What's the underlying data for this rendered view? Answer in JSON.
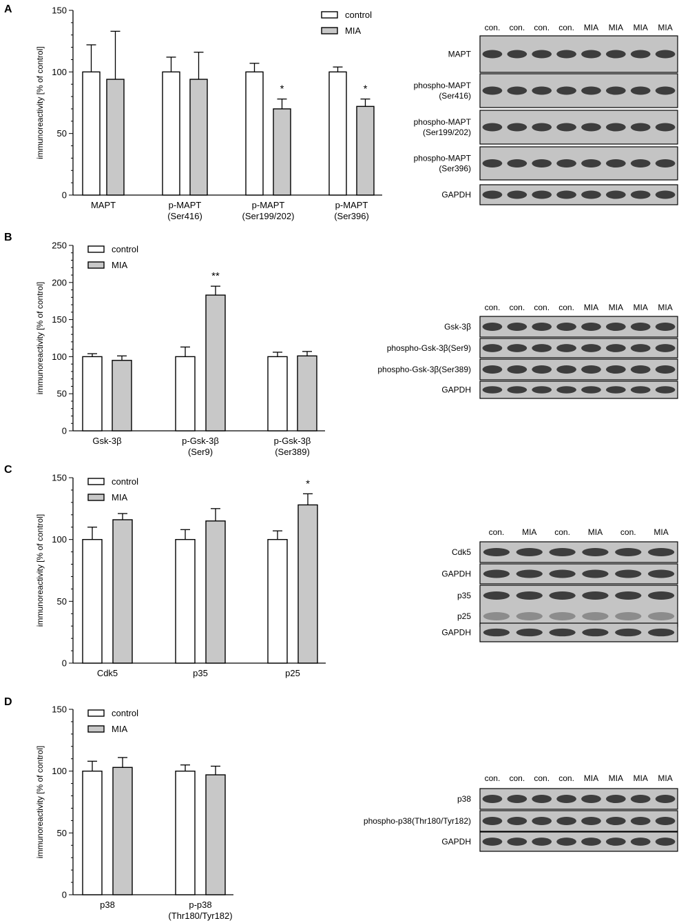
{
  "legend": {
    "control": "control",
    "mia": "MIA"
  },
  "colors": {
    "control": "#ffffff",
    "mia": "#c8c8c8",
    "blot_bg": "#c4c4c4",
    "band": "#262626"
  },
  "panels": [
    {
      "letter": "A",
      "ylabel": "immunoreactivity [% of control]",
      "lane_labels": [
        "con.",
        "con.",
        "con.",
        "con.",
        "MIA",
        "MIA",
        "MIA",
        "MIA"
      ],
      "blots": [
        {
          "label": [
            "MAPT"
          ],
          "rows": 1
        },
        {
          "label": [
            "phospho-MAPT",
            "(Ser416)"
          ],
          "rows": 1
        },
        {
          "label": [
            "phospho-MAPT",
            "(Ser199/202)"
          ],
          "rows": 1
        },
        {
          "label": [
            "phospho-MAPT",
            "(Ser396)"
          ],
          "rows": 1
        },
        {
          "label": [
            "GAPDH"
          ],
          "rows": 1
        }
      ]
    },
    {
      "letter": "B",
      "ylabel": "immunoreactivity [% of control]",
      "lane_labels": [
        "con.",
        "con.",
        "con.",
        "con.",
        "MIA",
        "MIA",
        "MIA",
        "MIA"
      ],
      "blots": [
        {
          "label": [
            "Gsk-3β"
          ],
          "rows": 1
        },
        {
          "label": [
            "phospho-Gsk-3β(Ser9)"
          ],
          "rows": 1
        },
        {
          "label": [
            "phospho-Gsk-3β(Ser389)"
          ],
          "rows": 1
        },
        {
          "label": [
            "GAPDH"
          ],
          "rows": 1
        }
      ]
    },
    {
      "letter": "C",
      "ylabel": "immunoreactivity [% of control]",
      "lane_labels": [
        "con.",
        "MIA",
        "con.",
        "MIA",
        "con.",
        "MIA"
      ],
      "blots": [
        {
          "label": [
            "Cdk5"
          ],
          "rows": 1
        },
        {
          "label": [
            "GAPDH"
          ],
          "rows": 1
        },
        {
          "label": [
            "p35",
            "p25"
          ],
          "rows": 2
        },
        {
          "label": [
            "GAPDH"
          ],
          "rows": 1
        }
      ]
    },
    {
      "letter": "D",
      "ylabel": "immunoreactivity [% of control]",
      "lane_labels": [
        "con.",
        "con.",
        "con.",
        "con.",
        "MIA",
        "MIA",
        "MIA",
        "MIA"
      ],
      "blots": [
        {
          "label": [
            "p38"
          ],
          "rows": 1
        },
        {
          "label": [
            "phospho-p38(Thr180/Tyr182)"
          ],
          "rows": 1
        },
        {
          "label": [
            "GAPDH"
          ],
          "rows": 1
        }
      ]
    }
  ],
  "chart_data": [
    {
      "type": "bar",
      "panel": "A",
      "categories": [
        [
          "MAPT"
        ],
        [
          "p-MAPT",
          "(Ser416)"
        ],
        [
          "p-MAPT",
          "(Ser199/202)"
        ],
        [
          "p-MAPT",
          "(Ser396)"
        ]
      ],
      "series": [
        {
          "name": "control",
          "values": [
            100,
            100,
            100,
            100
          ],
          "errors": [
            22,
            12,
            7,
            4
          ]
        },
        {
          "name": "MIA",
          "values": [
            94,
            94,
            70,
            72
          ],
          "errors": [
            39,
            22,
            8,
            6
          ]
        }
      ],
      "significance": [
        "",
        "",
        "*",
        "*"
      ],
      "ylabel": "immunoreactivity [% of control]",
      "ylim": [
        0,
        150
      ],
      "yticks": [
        0,
        50,
        100,
        150
      ],
      "legend": "top-center"
    },
    {
      "type": "bar",
      "panel": "B",
      "categories": [
        [
          "Gsk-3β"
        ],
        [
          "p-Gsk-3β",
          "(Ser9)"
        ],
        [
          "p-Gsk-3β",
          "(Ser389)"
        ]
      ],
      "series": [
        {
          "name": "control",
          "values": [
            100,
            100,
            100
          ],
          "errors": [
            4,
            13,
            6
          ]
        },
        {
          "name": "MIA",
          "values": [
            95,
            183,
            101
          ],
          "errors": [
            6,
            12,
            6
          ]
        }
      ],
      "significance": [
        "",
        "**",
        ""
      ],
      "ylabel": "immunoreactivity [% of control]",
      "ylim": [
        0,
        250
      ],
      "yticks": [
        0,
        50,
        100,
        150,
        200,
        250
      ],
      "legend": "top-left"
    },
    {
      "type": "bar",
      "panel": "C",
      "categories": [
        [
          "Cdk5"
        ],
        [
          "p35"
        ],
        [
          "p25"
        ]
      ],
      "series": [
        {
          "name": "control",
          "values": [
            100,
            100,
            100
          ],
          "errors": [
            10,
            8,
            7
          ]
        },
        {
          "name": "MIA",
          "values": [
            116,
            115,
            128
          ],
          "errors": [
            5,
            10,
            9
          ]
        }
      ],
      "significance": [
        "",
        "",
        "*"
      ],
      "ylabel": "immunoreactivity [% of control]",
      "ylim": [
        0,
        150
      ],
      "yticks": [
        0,
        50,
        100,
        150
      ],
      "legend": "top-left"
    },
    {
      "type": "bar",
      "panel": "D",
      "categories": [
        [
          "p38"
        ],
        [
          "p-p38",
          "(Thr180/Tyr182)"
        ]
      ],
      "series": [
        {
          "name": "control",
          "values": [
            100,
            100
          ],
          "errors": [
            8,
            5
          ]
        },
        {
          "name": "MIA",
          "values": [
            103,
            97
          ],
          "errors": [
            8,
            7
          ]
        }
      ],
      "significance": [
        "",
        ""
      ],
      "ylabel": "immunoreactivity [% of control]",
      "ylim": [
        0,
        150
      ],
      "yticks": [
        0,
        50,
        100,
        150
      ],
      "legend": "top-left"
    }
  ]
}
